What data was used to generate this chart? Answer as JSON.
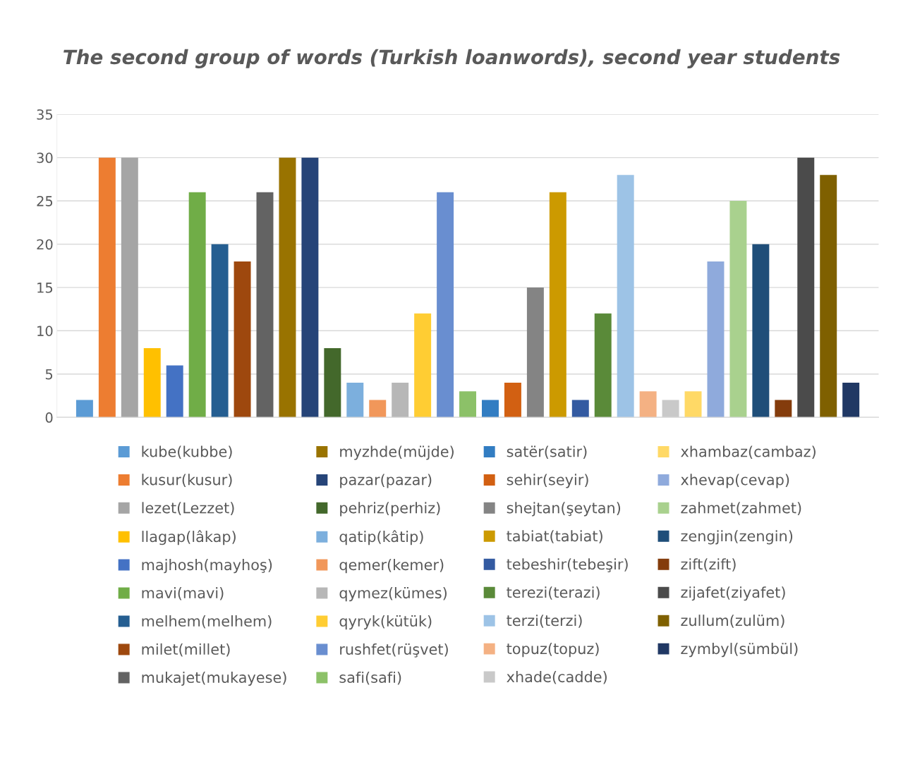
{
  "chart_data": {
    "type": "bar",
    "title": "The second group of words (Turkish loanwords), second year students",
    "categories": [
      null
    ],
    "ylim": [
      0,
      35
    ],
    "yticks": [
      0,
      5,
      10,
      15,
      20,
      25,
      30,
      35
    ],
    "grid": "y",
    "legend": "bottom",
    "series": [
      {
        "name": "kube(kubbe)",
        "color": "#5b9bd5",
        "values": [
          2
        ]
      },
      {
        "name": "kusur(kusur)",
        "color": "#ed7d31",
        "values": [
          30
        ]
      },
      {
        "name": "lezet(Lezzet)",
        "color": "#a5a5a5",
        "values": [
          30
        ]
      },
      {
        "name": "llagap(lâkap)",
        "color": "#ffc000",
        "values": [
          8
        ]
      },
      {
        "name": "majhosh(mayhoş)",
        "color": "#4472c4",
        "values": [
          6
        ]
      },
      {
        "name": "mavi(mavi)",
        "color": "#70ad47",
        "values": [
          26
        ]
      },
      {
        "name": "melhem(melhem)",
        "color": "#255e91",
        "values": [
          20
        ]
      },
      {
        "name": "milet(millet)",
        "color": "#9e480e",
        "values": [
          18
        ]
      },
      {
        "name": "mukajet(mukayese)",
        "color": "#636363",
        "values": [
          26
        ]
      },
      {
        "name": "myzhde(müjde)",
        "color": "#997300",
        "values": [
          30
        ]
      },
      {
        "name": "pazar(pazar)",
        "color": "#264478",
        "values": [
          30
        ]
      },
      {
        "name": "pehriz(perhiz)",
        "color": "#43682b",
        "values": [
          8
        ]
      },
      {
        "name": "qatip(kâtip)",
        "color": "#7cafdd",
        "values": [
          4
        ]
      },
      {
        "name": "qemer(kemer)",
        "color": "#f1975a",
        "values": [
          2
        ]
      },
      {
        "name": "qymez(kümes)",
        "color": "#b7b7b7",
        "values": [
          4
        ]
      },
      {
        "name": "qyryk(kütük)",
        "color": "#ffcd33",
        "values": [
          12
        ]
      },
      {
        "name": "rushfet(rüşvet)",
        "color": "#698ed0",
        "values": [
          26
        ]
      },
      {
        "name": "safi(safi)",
        "color": "#8cc168",
        "values": [
          3
        ]
      },
      {
        "name": "satër(satir)",
        "color": "#327dc2",
        "values": [
          2
        ]
      },
      {
        "name": "sehir(seyir)",
        "color": "#d26012",
        "values": [
          4
        ]
      },
      {
        "name": "shejtan(şeytan)",
        "color": "#848484",
        "values": [
          15
        ]
      },
      {
        "name": "tabiat(tabiat)",
        "color": "#cc9a00",
        "values": [
          26
        ]
      },
      {
        "name": "tebeshir(tebeşir)",
        "color": "#335aa1",
        "values": [
          2
        ]
      },
      {
        "name": "terezi(terazi)",
        "color": "#5a8a39",
        "values": [
          12
        ]
      },
      {
        "name": "terzi(terzi)",
        "color": "#9dc3e6",
        "values": [
          28
        ]
      },
      {
        "name": "topuz(topuz)",
        "color": "#f4b183",
        "values": [
          3
        ]
      },
      {
        "name": "xhade(cadde)",
        "color": "#c9c9c9",
        "values": [
          2
        ]
      },
      {
        "name": "xhambaz(cambaz)",
        "color": "#ffd966",
        "values": [
          3
        ]
      },
      {
        "name": "xhevap(cevap)",
        "color": "#8faadc",
        "values": [
          18
        ]
      },
      {
        "name": "zahmet(zahmet)",
        "color": "#a9d18e",
        "values": [
          25
        ]
      },
      {
        "name": "zengjin(zengin)",
        "color": "#1f4e79",
        "values": [
          20
        ]
      },
      {
        "name": "zift(zift)",
        "color": "#843c0c",
        "values": [
          2
        ]
      },
      {
        "name": "zijafet(ziyafet)",
        "color": "#4b4b4b",
        "values": [
          30
        ]
      },
      {
        "name": "zullum(zulüm)",
        "color": "#7f6000",
        "values": [
          28
        ]
      },
      {
        "name": "zymbyl(sümbül)",
        "color": "#203864",
        "values": [
          4
        ]
      }
    ]
  }
}
